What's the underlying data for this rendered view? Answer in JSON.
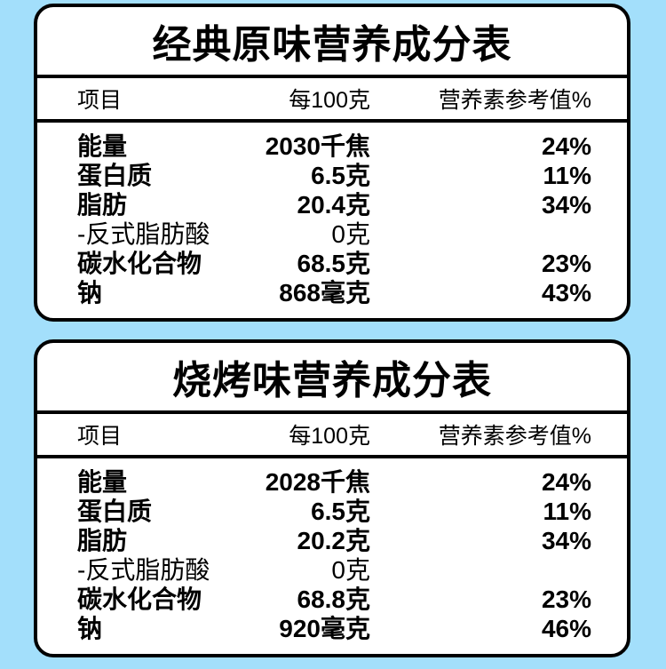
{
  "colors": {
    "background": "#a3dffb",
    "card_background": "#ffffff",
    "ink": "#000000"
  },
  "tables": [
    {
      "title": "经典原味营养成分表",
      "columns": {
        "item": "项目",
        "per100g": "每100克",
        "nrv": "营养素参考值%"
      },
      "rows": [
        {
          "name": "能量",
          "amount": "2030千焦",
          "nrv": "24%"
        },
        {
          "name": "蛋白质",
          "amount": "6.5克",
          "nrv": "11%"
        },
        {
          "name": "脂肪",
          "amount": "20.4克",
          "nrv": "34%"
        },
        {
          "name": "-反式脂肪酸",
          "amount": "0克",
          "nrv": ""
        },
        {
          "name": "碳水化合物",
          "amount": "68.5克",
          "nrv": "23%"
        },
        {
          "name": "钠",
          "amount": "868毫克",
          "nrv": "43%"
        }
      ]
    },
    {
      "title": "烧烤味营养成分表",
      "columns": {
        "item": "项目",
        "per100g": "每100克",
        "nrv": "营养素参考值%"
      },
      "rows": [
        {
          "name": "能量",
          "amount": "2028千焦",
          "nrv": "24%"
        },
        {
          "name": "蛋白质",
          "amount": "6.5克",
          "nrv": "11%"
        },
        {
          "name": "脂肪",
          "amount": "20.2克",
          "nrv": "34%"
        },
        {
          "name": "-反式脂肪酸",
          "amount": "0克",
          "nrv": ""
        },
        {
          "name": "碳水化合物",
          "amount": "68.8克",
          "nrv": "23%"
        },
        {
          "name": "钠",
          "amount": "920毫克",
          "nrv": "46%"
        }
      ]
    }
  ]
}
